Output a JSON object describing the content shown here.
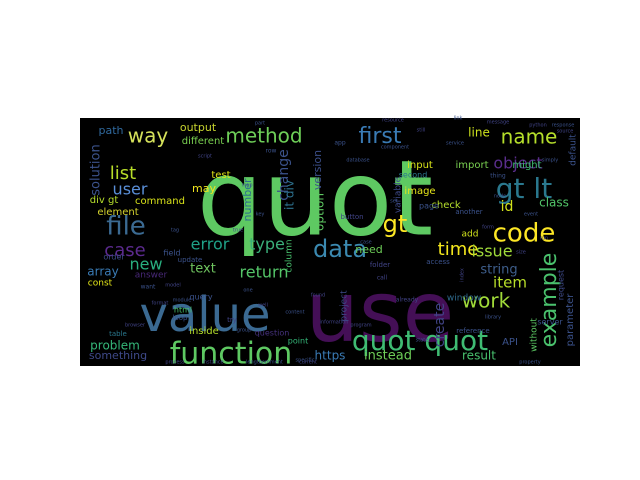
{
  "wordcloud": {
    "background": "#000000",
    "words": [
      {
        "text": "quot",
        "color": "#5ec962"
      },
      {
        "text": "use",
        "color": "#440f56"
      },
      {
        "text": "value",
        "color": "#3b6a92"
      },
      {
        "text": "function",
        "color": "#5ec962"
      },
      {
        "text": "quot quot",
        "color": "#3fbc73"
      },
      {
        "text": "data",
        "color": "#3b89b0"
      },
      {
        "text": "code",
        "color": "#fde725"
      },
      {
        "text": "gt lt",
        "color": "#2a788e"
      },
      {
        "text": "first",
        "color": "#3a7bb5"
      },
      {
        "text": "name",
        "color": "#b5de2b"
      },
      {
        "text": "file",
        "color": "#3b6a92"
      },
      {
        "text": "method",
        "color": "#6ece58"
      },
      {
        "text": "way",
        "color": "#d6e25b"
      },
      {
        "text": "list",
        "color": "#b7dd29"
      },
      {
        "text": "user",
        "color": "#5a8fd8"
      },
      {
        "text": "time",
        "color": "#f2e51d"
      },
      {
        "text": "new",
        "color": "#29af7f"
      },
      {
        "text": "case",
        "color": "#5b2a8e"
      },
      {
        "text": "error",
        "color": "#1fa187"
      },
      {
        "text": "return",
        "color": "#54c568"
      },
      {
        "text": "type",
        "color": "#3bb07a"
      },
      {
        "text": "example",
        "color": "#4ac16d"
      },
      {
        "text": "work",
        "color": "#a0da39"
      },
      {
        "text": "object",
        "color": "#5a2d8c"
      },
      {
        "text": "issue",
        "color": "#9fda3a"
      },
      {
        "text": "gt",
        "color": "#fde725"
      },
      {
        "text": "item",
        "color": "#b8de29"
      },
      {
        "text": "string",
        "color": "#3e5e8c"
      },
      {
        "text": "id",
        "color": "#d2e21b"
      },
      {
        "text": "class",
        "color": "#52c569"
      },
      {
        "text": "create",
        "color": "#414487"
      },
      {
        "text": "problem",
        "color": "#35b779"
      },
      {
        "text": "array",
        "color": "#3a7bb5"
      },
      {
        "text": "text",
        "color": "#6fc45f"
      },
      {
        "text": "output",
        "color": "#c8d52f"
      },
      {
        "text": "element",
        "color": "#d4d22d"
      },
      {
        "text": "different",
        "color": "#7ad151"
      },
      {
        "text": "solution",
        "color": "#3b528b"
      },
      {
        "text": "path",
        "color": "#306a9f"
      },
      {
        "text": "command",
        "color": "#d8e219"
      },
      {
        "text": "div gt",
        "color": "#b5de2b"
      },
      {
        "text": "may",
        "color": "#f1e51d"
      },
      {
        "text": "change",
        "color": "#3b528b"
      },
      {
        "text": "number",
        "color": "#2d6f8e"
      },
      {
        "text": "version",
        "color": "#3c4f8a"
      },
      {
        "text": "option",
        "color": "#5ec962"
      },
      {
        "text": "input",
        "color": "#d8e219"
      },
      {
        "text": "import",
        "color": "#7ad151"
      },
      {
        "text": "line",
        "color": "#cde11d"
      },
      {
        "text": "might",
        "color": "#3fbc73"
      },
      {
        "text": "image",
        "color": "#e5e419"
      },
      {
        "text": "check",
        "color": "#b5de2b"
      },
      {
        "text": "need",
        "color": "#6ece58"
      },
      {
        "text": "add",
        "color": "#d0e11c"
      },
      {
        "text": "instead",
        "color": "#6ece58"
      },
      {
        "text": "result",
        "color": "#48c16e"
      },
      {
        "text": "https",
        "color": "#3a7bb5"
      },
      {
        "text": "something",
        "color": "#3e4989"
      },
      {
        "text": "inside",
        "color": "#b5de2b"
      },
      {
        "text": "test",
        "color": "#e0e318"
      },
      {
        "text": "API",
        "color": "#3b528b"
      },
      {
        "text": "without",
        "color": "#5cc863"
      },
      {
        "text": "parameter",
        "color": "#3b528b"
      },
      {
        "text": "request",
        "color": "#3e4a89"
      },
      {
        "text": "window",
        "color": "#2f6b8e"
      },
      {
        "text": "column",
        "color": "#48c16e"
      },
      {
        "text": "answer",
        "color": "#482878"
      },
      {
        "text": "const",
        "color": "#e1e418"
      },
      {
        "text": "project",
        "color": "#3e4a89"
      },
      {
        "text": "question",
        "color": "#46327e"
      },
      {
        "text": "point",
        "color": "#35b779"
      },
      {
        "text": "default",
        "color": "#3b528b"
      },
      {
        "text": "variable",
        "color": "#3e4a89"
      },
      {
        "text": "page",
        "color": "#3b528b"
      },
      {
        "text": "second",
        "color": "#2a788e"
      },
      {
        "text": "it div",
        "color": "#2d718e"
      },
      {
        "text": "html",
        "color": "#48c16e"
      },
      {
        "text": "table",
        "color": "#2a788e"
      },
      {
        "text": "query",
        "color": "#3b528b"
      },
      {
        "text": "order",
        "color": "#3e4a89"
      },
      {
        "text": "field",
        "color": "#3b528b"
      },
      {
        "text": "loop",
        "color": "#3a538b"
      },
      {
        "text": "folder",
        "color": "#414487"
      },
      {
        "text": "access",
        "color": "#3b528b"
      },
      {
        "text": "server",
        "color": "#3b528b"
      },
      {
        "text": "another",
        "color": "#3b528b"
      },
      {
        "text": "button",
        "color": "#414487"
      },
      {
        "text": "app",
        "color": "#3b528b"
      },
      {
        "text": "reference",
        "color": "#3b528b"
      },
      {
        "text": "update",
        "color": "#3b528b"
      },
      {
        "text": "try",
        "color": "#414487"
      },
      {
        "text": "row",
        "color": "#3b528b"
      },
      {
        "text": "already",
        "color": "#414487"
      },
      {
        "text": "simply",
        "color": "#3b528b"
      },
      {
        "text": "thing",
        "color": "#3b528b"
      },
      {
        "text": "want",
        "color": "#3b528b"
      },
      {
        "text": "call",
        "color": "#414487"
      },
      {
        "text": "set",
        "color": "#3b528b"
      },
      {
        "text": "part",
        "color": "#3b528b"
      },
      {
        "text": "still",
        "color": "#414487"
      },
      {
        "text": "module",
        "color": "#3b528b"
      },
      {
        "text": "python",
        "color": "#414487"
      },
      {
        "text": "response",
        "color": "#3b528b"
      },
      {
        "text": "message",
        "color": "#414487"
      },
      {
        "text": "property",
        "color": "#3b528b"
      },
      {
        "text": "index",
        "color": "#414487"
      },
      {
        "text": "state",
        "color": "#3b528b"
      },
      {
        "text": "program",
        "color": "#414487"
      },
      {
        "text": "content",
        "color": "#3b528b"
      },
      {
        "text": "information",
        "color": "#414487"
      },
      {
        "text": "one",
        "color": "#3b528b"
      },
      {
        "text": "browser",
        "color": "#414487"
      },
      {
        "text": "specific",
        "color": "#3b528b"
      },
      {
        "text": "process",
        "color": "#414487"
      },
      {
        "text": "component",
        "color": "#3b528b"
      },
      {
        "text": "instance",
        "color": "#414487"
      },
      {
        "text": "length",
        "color": "#3b528b"
      },
      {
        "text": "found",
        "color": "#414487"
      },
      {
        "text": "group",
        "color": "#3b528b"
      },
      {
        "text": "resource",
        "color": "#414487"
      },
      {
        "text": "database",
        "color": "#3b528b"
      },
      {
        "text": "current",
        "color": "#414487"
      },
      {
        "text": "comment",
        "color": "#3b528b"
      },
      {
        "text": "format",
        "color": "#414487"
      },
      {
        "text": "key",
        "color": "#3b528b"
      },
      {
        "text": "true",
        "color": "#414487"
      },
      {
        "text": "map",
        "color": "#3b528b"
      },
      {
        "text": "form",
        "color": "#414487"
      },
      {
        "text": "link",
        "color": "#3b528b"
      },
      {
        "text": "source",
        "color": "#414487"
      },
      {
        "text": "node",
        "color": "#3b528b"
      },
      {
        "text": "size",
        "color": "#414487"
      },
      {
        "text": "event",
        "color": "#3b528b"
      },
      {
        "text": "run",
        "color": "#414487"
      },
      {
        "text": "library",
        "color": "#3b528b"
      },
      {
        "text": "well",
        "color": "#414487"
      },
      {
        "text": "tag",
        "color": "#3b528b"
      },
      {
        "text": "model",
        "color": "#414487"
      },
      {
        "text": "service",
        "color": "#3b528b"
      },
      {
        "text": "script",
        "color": "#414487"
      },
      {
        "text": "case",
        "color": "#3b528b"
      }
    ]
  }
}
